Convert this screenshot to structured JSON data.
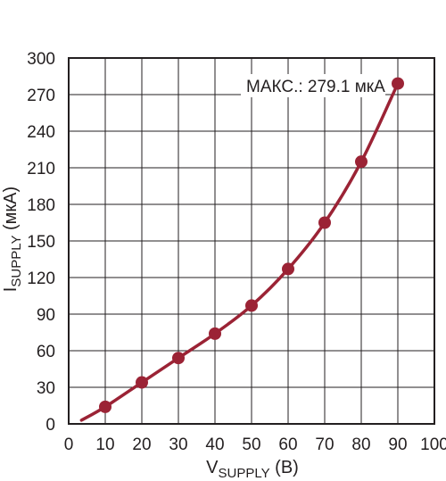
{
  "chart_data": {
    "type": "line",
    "xlabel": {
      "main": "V",
      "sub": "SUPPLY",
      "unit": " (В)"
    },
    "ylabel": {
      "main": "I",
      "sub": "SUPPLY",
      "unit": " (мкА)"
    },
    "xlim": [
      0,
      100
    ],
    "ylim": [
      0,
      300
    ],
    "x_ticks": [
      "0",
      "10",
      "20",
      "30",
      "40",
      "50",
      "60",
      "70",
      "80",
      "90",
      "100"
    ],
    "y_ticks": [
      "0",
      "30",
      "60",
      "90",
      "120",
      "150",
      "180",
      "210",
      "240",
      "270",
      "300"
    ],
    "grid": true,
    "annotation": "МАКС.: 279.1 мкА",
    "series": [
      {
        "color": "#9b2335",
        "curve": [
          {
            "x": 3.5,
            "y": 3
          },
          {
            "x": 10,
            "y": 14
          },
          {
            "x": 20,
            "y": 34
          },
          {
            "x": 30,
            "y": 54
          },
          {
            "x": 40,
            "y": 74
          },
          {
            "x": 50,
            "y": 97
          },
          {
            "x": 60,
            "y": 127
          },
          {
            "x": 70,
            "y": 165
          },
          {
            "x": 80,
            "y": 215
          },
          {
            "x": 90,
            "y": 279.1
          }
        ],
        "markers": [
          {
            "x": 10,
            "y": 14
          },
          {
            "x": 20,
            "y": 34
          },
          {
            "x": 30,
            "y": 54
          },
          {
            "x": 40,
            "y": 74
          },
          {
            "x": 50,
            "y": 97
          },
          {
            "x": 60,
            "y": 127
          },
          {
            "x": 70,
            "y": 165
          },
          {
            "x": 80,
            "y": 215
          },
          {
            "x": 90,
            "y": 279.1
          }
        ]
      }
    ]
  }
}
